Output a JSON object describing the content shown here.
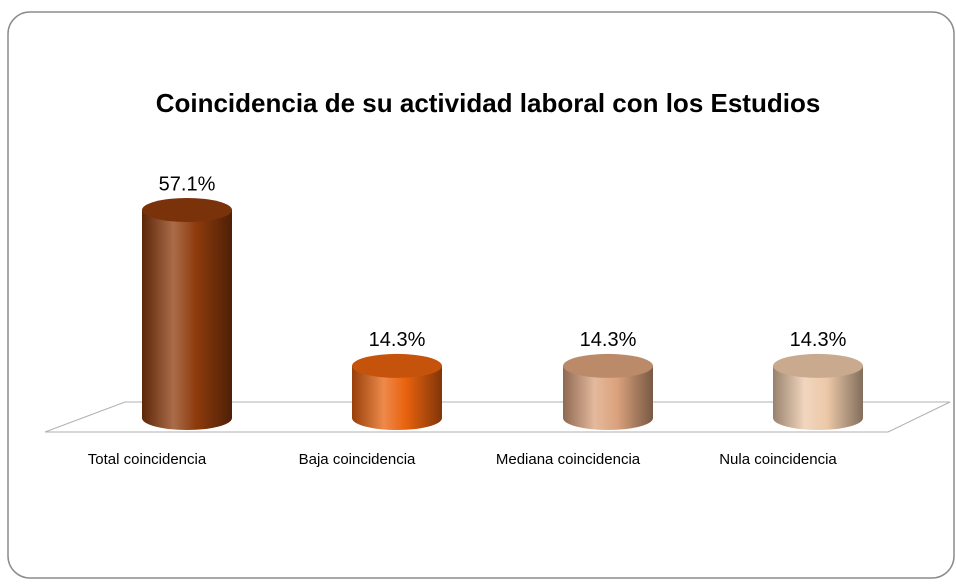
{
  "chart_data": {
    "type": "bar",
    "title": "Coincidencia de su actividad laboral con los Estudios",
    "categories": [
      "Total coincidencia",
      "Baja coincidencia",
      "Mediana coincidencia",
      "Nula coincidencia"
    ],
    "values": [
      57.1,
      14.3,
      14.3,
      14.3
    ],
    "value_labels": [
      "57.1%",
      "14.3%",
      "14.3%",
      "14.3%"
    ],
    "colors": [
      "#8e3b0c",
      "#e8620e",
      "#dba27c",
      "#ecc8a8"
    ]
  }
}
